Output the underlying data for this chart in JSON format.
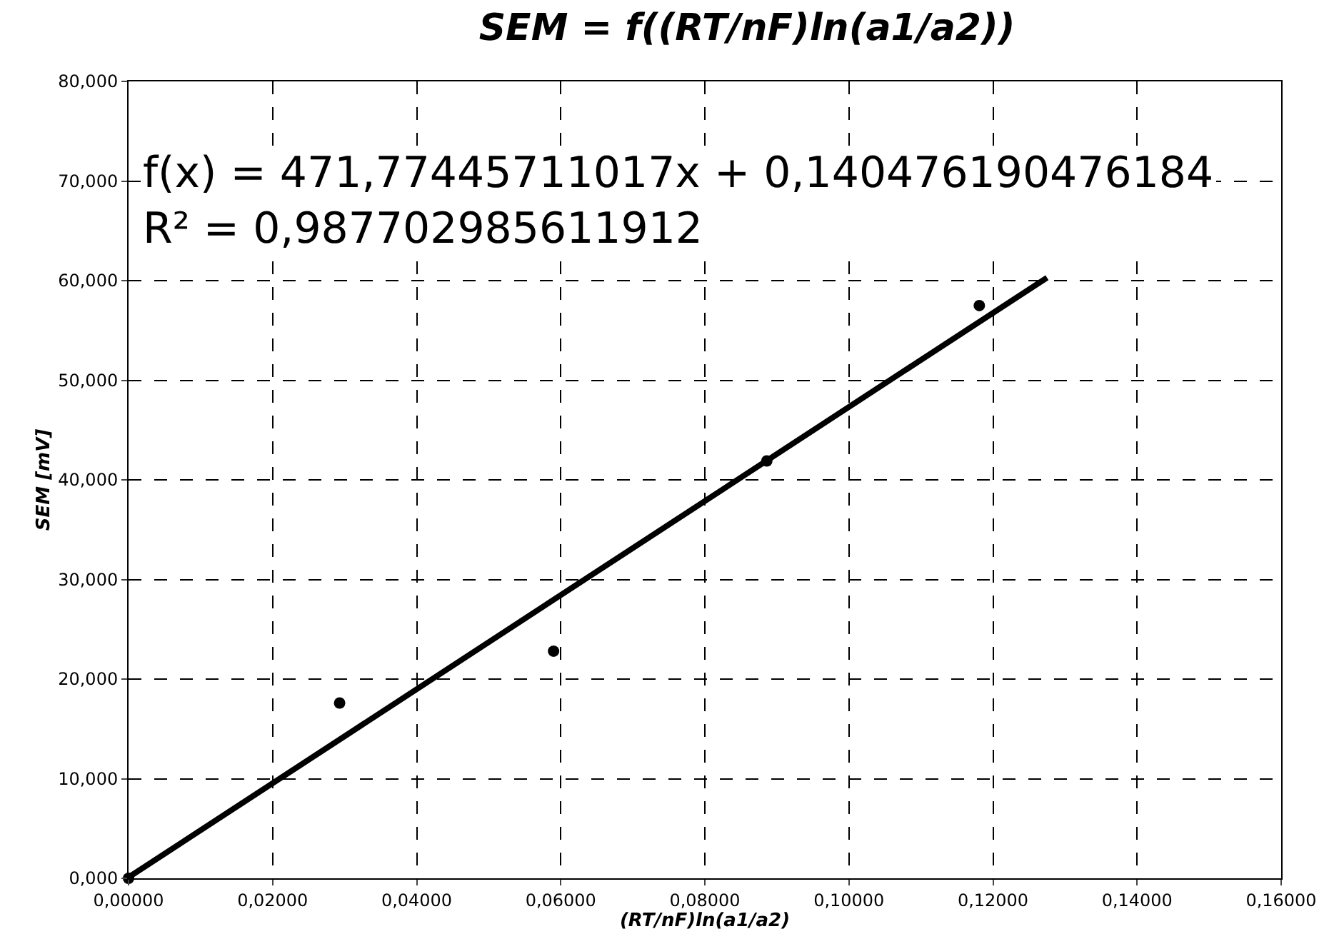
{
  "chart_data": {
    "type": "scatter",
    "title": "SEM = f((RT/nF)ln(a1/a2))",
    "xlabel": "(RT/nF)ln(a1/a2)",
    "ylabel": "SEM [mV]",
    "annotations": [
      "f(x) = 471,77445711017x + 0,140476190476184\nR² = 0,987702985611912"
    ],
    "series": [
      {
        "color": "#000000",
        "x": [
          0,
          0.0293,
          0.059,
          0.0886,
          0.1181
        ],
        "values": [
          0,
          17.6,
          22.8,
          41.9,
          57.5
        ],
        "marker": "circle"
      },
      {
        "type": "line",
        "color": "#000000",
        "x": [
          0,
          0.1275
        ],
        "values": [
          0.1,
          60.3
        ],
        "line_style": "solid",
        "marker": "none"
      }
    ],
    "xlim": [
      0,
      0.16
    ],
    "xticks": [
      {
        "value": 0,
        "label": "0,00000"
      },
      {
        "value": 0.02,
        "label": "0,02000"
      },
      {
        "value": 0.04,
        "label": "0,04000"
      },
      {
        "value": 0.06,
        "label": "0,06000"
      },
      {
        "value": 0.08,
        "label": "0,08000"
      },
      {
        "value": 0.1,
        "label": "0,10000"
      },
      {
        "value": 0.12,
        "label": "0,12000"
      },
      {
        "value": 0.14,
        "label": "0,14000"
      },
      {
        "value": 0.16,
        "label": "0,16000"
      }
    ],
    "ylim": [
      0,
      80
    ],
    "yticks": [
      {
        "value": 0,
        "label": "0,000"
      },
      {
        "value": 10,
        "label": "10,000"
      },
      {
        "value": 20,
        "label": "20,000"
      },
      {
        "value": 30,
        "label": "30,000"
      },
      {
        "value": 40,
        "label": "40,000"
      },
      {
        "value": 50,
        "label": "50,000"
      },
      {
        "value": 60,
        "label": "60,000"
      },
      {
        "value": 70,
        "label": "70,000"
      },
      {
        "value": 80,
        "label": "80,000"
      }
    ],
    "grid": true
  }
}
